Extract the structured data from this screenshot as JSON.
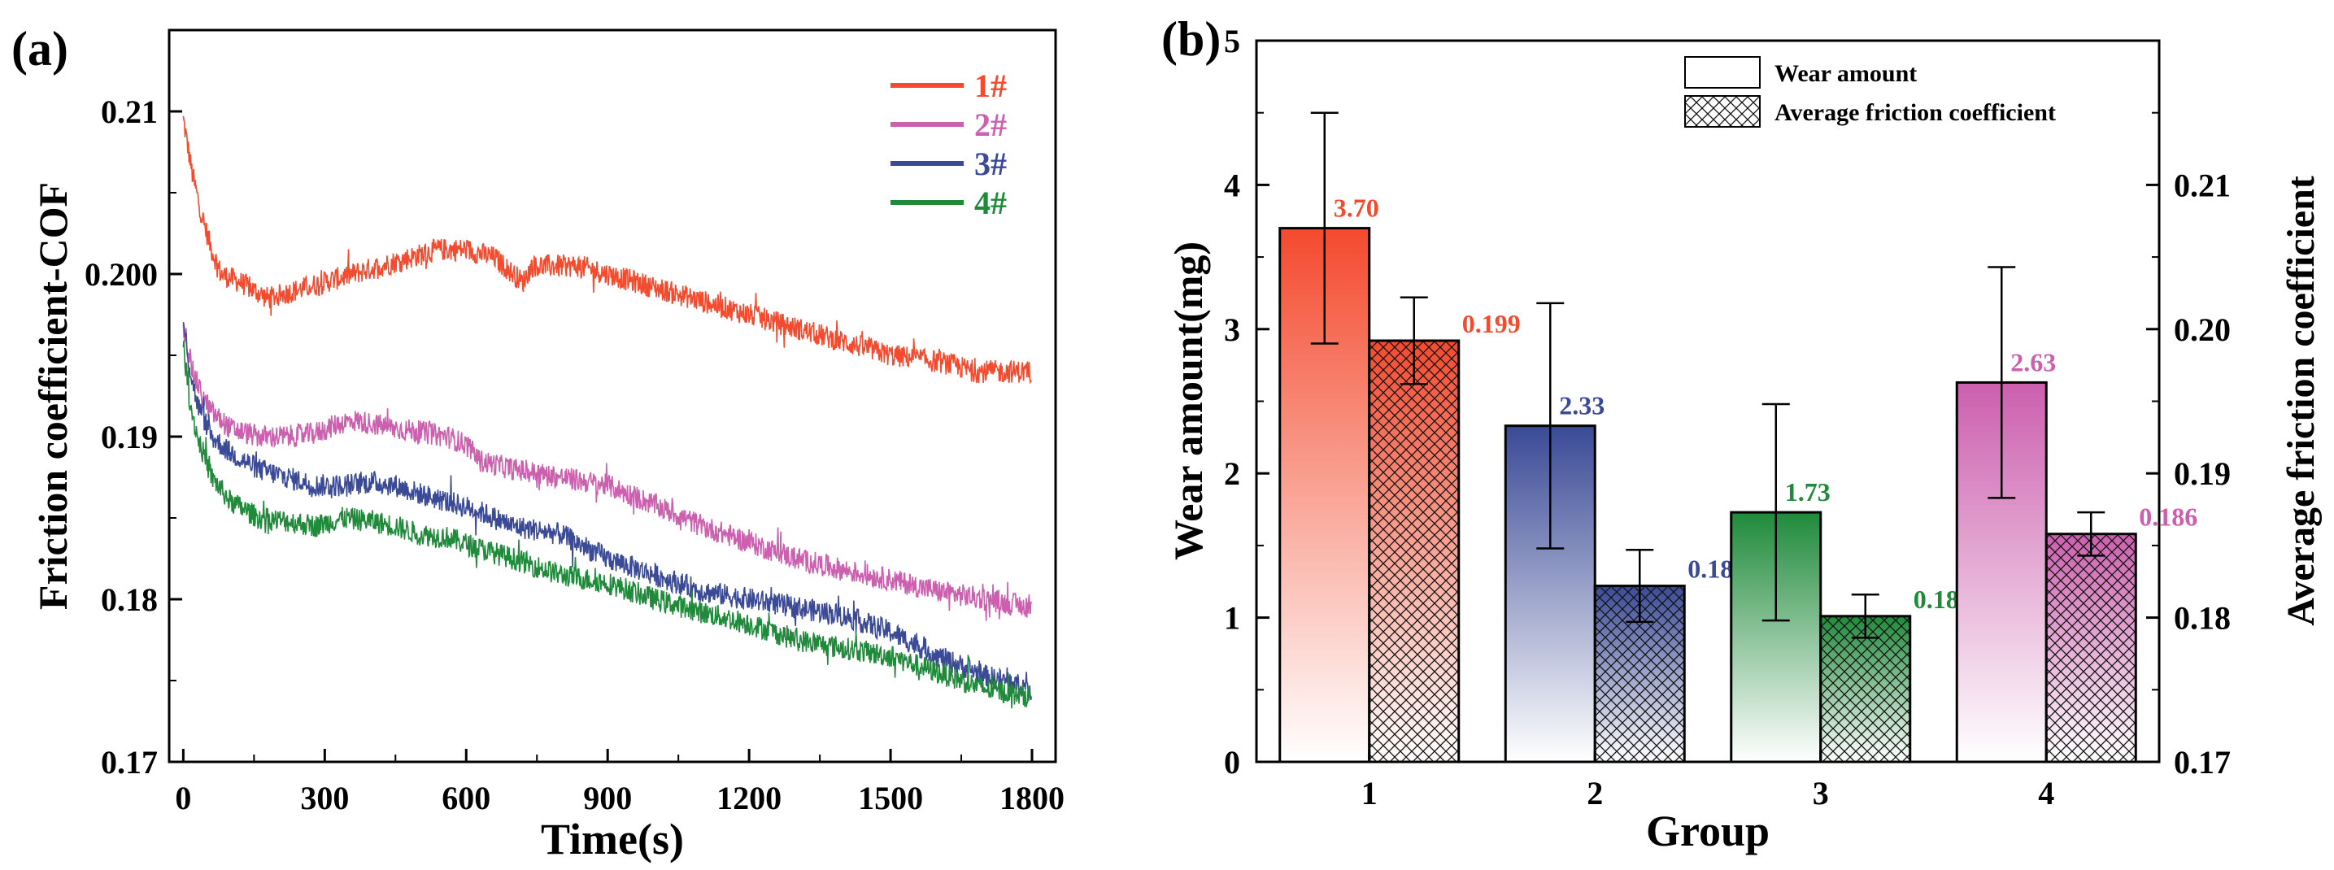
{
  "panels": {
    "a": "(a)",
    "b": "(b)"
  },
  "chart_data": [
    {
      "type": "line",
      "panel": "a",
      "xlabel": "Time(s)",
      "ylabel": "Friction coefficient-COF",
      "xlim": [
        -30,
        1850
      ],
      "ylim": [
        0.17,
        0.215
      ],
      "xticks": [
        0,
        300,
        600,
        900,
        1200,
        1500,
        1800
      ],
      "yticks": [
        0.17,
        0.18,
        0.19,
        0.2,
        0.21
      ],
      "ytick_labels": [
        "0.17",
        "0.18",
        "0.19",
        "0.200",
        "0.21"
      ],
      "legend_position": "top-right",
      "series": [
        {
          "name": "1#",
          "color": "#f44a2e",
          "points": [
            [
              0,
              0.2095
            ],
            [
              20,
              0.206
            ],
            [
              40,
              0.2035
            ],
            [
              60,
              0.2015
            ],
            [
              80,
              0.2
            ],
            [
              120,
              0.1995
            ],
            [
              180,
              0.1985
            ],
            [
              240,
              0.199
            ],
            [
              300,
              0.1995
            ],
            [
              360,
              0.2
            ],
            [
              420,
              0.2005
            ],
            [
              480,
              0.201
            ],
            [
              540,
              0.2015
            ],
            [
              600,
              0.2015
            ],
            [
              660,
              0.201
            ],
            [
              700,
              0.2
            ],
            [
              720,
              0.1995
            ],
            [
              740,
              0.2005
            ],
            [
              780,
              0.2005
            ],
            [
              840,
              0.2005
            ],
            [
              900,
              0.2
            ],
            [
              960,
              0.1995
            ],
            [
              1020,
              0.199
            ],
            [
              1080,
              0.1985
            ],
            [
              1140,
              0.198
            ],
            [
              1200,
              0.1975
            ],
            [
              1260,
              0.197
            ],
            [
              1320,
              0.1965
            ],
            [
              1380,
              0.196
            ],
            [
              1440,
              0.1955
            ],
            [
              1500,
              0.195
            ],
            [
              1560,
              0.1948
            ],
            [
              1620,
              0.1945
            ],
            [
              1680,
              0.194
            ],
            [
              1740,
              0.194
            ],
            [
              1800,
              0.194
            ]
          ]
        },
        {
          "name": "2#",
          "color": "#cc5fae",
          "points": [
            [
              0,
              0.197
            ],
            [
              20,
              0.194
            ],
            [
              40,
              0.1925
            ],
            [
              60,
              0.1915
            ],
            [
              100,
              0.1905
            ],
            [
              160,
              0.19
            ],
            [
              220,
              0.19
            ],
            [
              280,
              0.1902
            ],
            [
              330,
              0.1908
            ],
            [
              360,
              0.191
            ],
            [
              400,
              0.1908
            ],
            [
              450,
              0.1905
            ],
            [
              500,
              0.1903
            ],
            [
              560,
              0.19
            ],
            [
              600,
              0.1895
            ],
            [
              630,
              0.1885
            ],
            [
              700,
              0.188
            ],
            [
              800,
              0.1875
            ],
            [
              900,
              0.187
            ],
            [
              1000,
              0.1858
            ],
            [
              1100,
              0.1845
            ],
            [
              1200,
              0.1835
            ],
            [
              1300,
              0.1825
            ],
            [
              1400,
              0.1818
            ],
            [
              1500,
              0.1812
            ],
            [
              1600,
              0.1805
            ],
            [
              1700,
              0.18
            ],
            [
              1800,
              0.1795
            ]
          ]
        },
        {
          "name": "3#",
          "color": "#3a4a96",
          "points": [
            [
              0,
              0.197
            ],
            [
              15,
              0.194
            ],
            [
              30,
              0.192
            ],
            [
              60,
              0.19
            ],
            [
              100,
              0.189
            ],
            [
              160,
              0.188
            ],
            [
              220,
              0.1875
            ],
            [
              280,
              0.187
            ],
            [
              340,
              0.187
            ],
            [
              400,
              0.1872
            ],
            [
              450,
              0.187
            ],
            [
              500,
              0.1865
            ],
            [
              560,
              0.186
            ],
            [
              620,
              0.1855
            ],
            [
              700,
              0.1845
            ],
            [
              800,
              0.184
            ],
            [
              900,
              0.1825
            ],
            [
              1000,
              0.1815
            ],
            [
              1100,
              0.1805
            ],
            [
              1200,
              0.18
            ],
            [
              1300,
              0.1795
            ],
            [
              1400,
              0.179
            ],
            [
              1500,
              0.178
            ],
            [
              1600,
              0.1765
            ],
            [
              1700,
              0.1753
            ],
            [
              1800,
              0.1745
            ]
          ]
        },
        {
          "name": "4#",
          "color": "#1f8a3a",
          "points": [
            [
              0,
              0.1955
            ],
            [
              15,
              0.192
            ],
            [
              30,
              0.19
            ],
            [
              60,
              0.1875
            ],
            [
              100,
              0.186
            ],
            [
              160,
              0.185
            ],
            [
              220,
              0.1848
            ],
            [
              280,
              0.1845
            ],
            [
              340,
              0.185
            ],
            [
              400,
              0.1848
            ],
            [
              450,
              0.1845
            ],
            [
              500,
              0.184
            ],
            [
              560,
              0.1838
            ],
            [
              620,
              0.1832
            ],
            [
              700,
              0.1825
            ],
            [
              800,
              0.1815
            ],
            [
              900,
              0.181
            ],
            [
              1000,
              0.18
            ],
            [
              1100,
              0.1792
            ],
            [
              1200,
              0.1785
            ],
            [
              1300,
              0.1775
            ],
            [
              1400,
              0.177
            ],
            [
              1500,
              0.1765
            ],
            [
              1600,
              0.1755
            ],
            [
              1700,
              0.1745
            ],
            [
              1800,
              0.174
            ]
          ]
        }
      ]
    },
    {
      "type": "bar",
      "panel": "b",
      "xlabel": "Group",
      "ylabel": "Wear amount(mg)",
      "ylabel_right": "Average friction coefficient",
      "categories": [
        "1",
        "2",
        "3",
        "4"
      ],
      "ylim": [
        0,
        5
      ],
      "ylim_right": [
        0.17,
        0.22
      ],
      "yticks": [
        0,
        1,
        2,
        3,
        4,
        5
      ],
      "yticks_right": [
        "0.17",
        "0.18",
        "0.19",
        "0.20",
        "0.21"
      ],
      "legend_position": "top-right",
      "legend": [
        "Wear amount",
        "Average friction coefficient"
      ],
      "colors": [
        "#f44a2e",
        "#3a4a96",
        "#1f8a3a",
        "#cc5fae"
      ],
      "series": [
        {
          "name": "Wear amount",
          "axis": "left",
          "values": [
            3.7,
            2.33,
            1.73,
            2.63
          ],
          "errors": [
            0.8,
            0.85,
            0.75,
            0.8
          ],
          "labels": [
            "3.70",
            "2.33",
            "1.73",
            "2.63"
          ]
        },
        {
          "name": "Average friction coefficient",
          "axis": "right",
          "values": [
            0.1992,
            0.1822,
            0.1801,
            0.1858
          ],
          "errors": [
            0.003,
            0.0025,
            0.0015,
            0.0015
          ],
          "labels": [
            "0.199",
            "0.182",
            "0.180",
            "0.186"
          ]
        }
      ]
    }
  ]
}
